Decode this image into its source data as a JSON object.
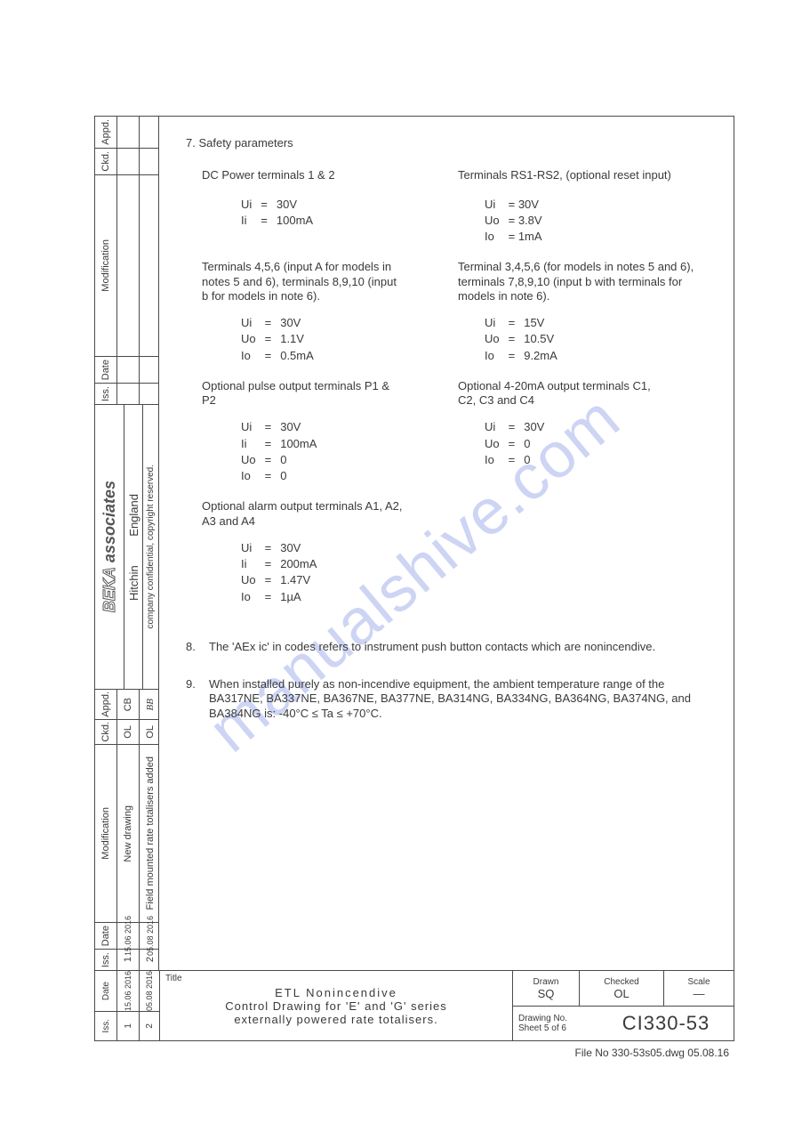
{
  "watermark": "manualshive.com",
  "section7": {
    "title": "7. Safety parameters",
    "left": {
      "block1": {
        "heading": "DC Power terminals 1 & 2",
        "rows": [
          [
            "Ui",
            "=",
            "30V"
          ],
          [
            "Ii",
            "=",
            "100mA"
          ]
        ]
      },
      "block2": {
        "heading": "Terminals 4,5,6 (input A for models in notes 5 and 6), terminals 8,9,10 (input b for models in note 6).",
        "rows": [
          [
            "Ui",
            "=",
            "30V"
          ],
          [
            "Uo",
            "=",
            "1.1V"
          ],
          [
            "Io",
            "=",
            "0.5mA"
          ]
        ]
      },
      "block3": {
        "heading": "Optional pulse output terminals P1 & P2",
        "rows": [
          [
            "Ui",
            "=",
            "30V"
          ],
          [
            "Ii",
            "=",
            "100mA"
          ],
          [
            "Uo",
            "=",
            "0"
          ],
          [
            "Io",
            "=",
            "0"
          ]
        ]
      },
      "block4": {
        "heading": "Optional alarm output terminals A1, A2, A3 and A4",
        "rows": [
          [
            "Ui",
            "=",
            "30V"
          ],
          [
            "Ii",
            "=",
            "200mA"
          ],
          [
            "Uo",
            "=",
            "1.47V"
          ],
          [
            "Io",
            "=",
            "1µA"
          ]
        ]
      }
    },
    "right": {
      "block1": {
        "heading": "Terminals RS1-RS2, (optional reset input)",
        "rows": [
          [
            "Ui",
            "= 30V"
          ],
          [
            "Uo",
            "= 3.8V"
          ],
          [
            "Io",
            "= 1mA"
          ]
        ]
      },
      "block2": {
        "heading": "Terminal 3,4,5,6 (for models in notes 5 and 6), terminals 7,8,9,10 (input b with terminals for models in note 6).",
        "rows": [
          [
            "Ui",
            "=",
            "15V"
          ],
          [
            "Uo",
            "=",
            "10.5V"
          ],
          [
            "Io",
            "=",
            "9.2mA"
          ]
        ]
      },
      "block3": {
        "heading": "Optional 4-20mA output terminals C1, C2, C3 and C4",
        "rows": [
          [
            "Ui",
            "=",
            "30V"
          ],
          [
            "Uo",
            "=",
            "0"
          ],
          [
            "Io",
            "=",
            "0"
          ]
        ]
      }
    }
  },
  "note8": {
    "num": "8.",
    "text": "The 'AEx ic' in codes refers to instrument push button contacts which are nonincendive."
  },
  "note9": {
    "num": "9.",
    "text": "When installed purely as non-incendive equipment, the ambient temperature range of the BA317NE, BA337NE, BA367NE, BA377NE, BA314NG, BA334NG, BA364NG, BA374NG, and BA384NG is: -40°C ≤ Ta ≤ +70°C."
  },
  "sidebar": {
    "h_appd": "Appd.",
    "h_ckd": "Ckd.",
    "h_mod": "Modification",
    "h_date": "Date",
    "h_iss": "Iss.",
    "company_line": "company confidential, copyright reserved.",
    "loc1": "Hitchin",
    "loc2": "England",
    "brand1": "BEKA",
    "brand2": "associates",
    "r1_appd": "CB",
    "r1_ckd": "OL",
    "r1_mod": "New drawing",
    "r1_date": "15.06 2016",
    "r1_iss": "1",
    "r2_appd": "BB",
    "r2_ckd": "OL",
    "r2_mod": "Field mounted rate totalisers added",
    "r2_date": "05.08 2016",
    "r2_iss": "2"
  },
  "titleblock": {
    "title_label": "Title",
    "l1": "ETL  Nonincendive",
    "l2": "Control  Drawing  for  'E'  and  'G'  series",
    "l3": "externally  powered  rate  totalisers.",
    "drawn_lbl": "Drawn",
    "drawn_val": "SQ",
    "checked_lbl": "Checked",
    "checked_val": "OL",
    "scale_lbl": "Scale",
    "scale_val": "—",
    "dwgno_lbl": "Drawing  No.",
    "sheet": "Sheet 5 of 6",
    "dwgno": "CI330-53"
  },
  "footer": "File  No  330-53s05.dwg   05.08.16"
}
